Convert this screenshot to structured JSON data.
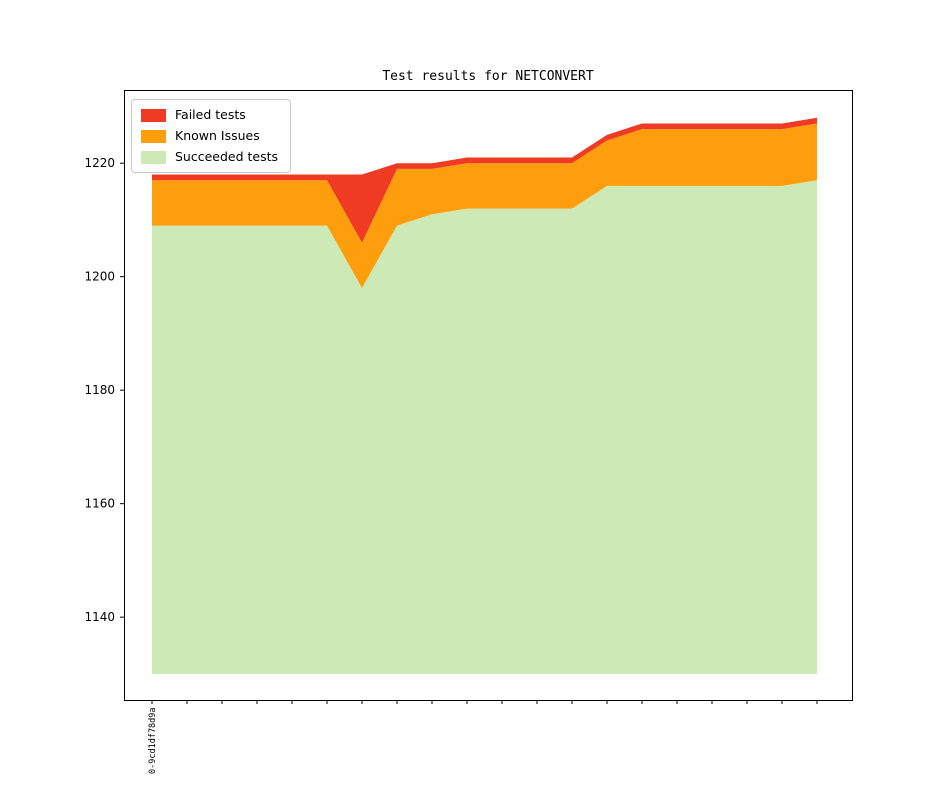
{
  "figure": {
    "title": "Test results for NETCONVERT"
  },
  "chart_data": {
    "type": "area",
    "stacked": true,
    "title": "Test results for NETCONVERT",
    "xlabel": "",
    "ylabel": "",
    "legend_position": "upper left",
    "grid": false,
    "ylim": [
      1125.4,
      1232.9
    ],
    "baseline": 1130,
    "yticks": [
      1140,
      1160,
      1180,
      1200,
      1220
    ],
    "x_tick_labels": [
      "0-9cd1df78d9a",
      "",
      "",
      "",
      "",
      "",
      "",
      "",
      "",
      "",
      "",
      "",
      "",
      "",
      "",
      "",
      "",
      "",
      "",
      ""
    ],
    "series": [
      {
        "name": "Failed tests",
        "color": "#f03b24",
        "values": [
          1,
          1,
          1,
          1,
          1,
          1,
          12,
          1,
          1,
          1,
          1,
          1,
          1,
          1,
          1,
          1,
          1,
          1,
          1,
          1
        ]
      },
      {
        "name": "Known Issues",
        "color": "#ff9e0d",
        "values": [
          8,
          8,
          8,
          8,
          8,
          8,
          8,
          10,
          8,
          8,
          8,
          8,
          8,
          8,
          10,
          10,
          10,
          10,
          10,
          10
        ]
      },
      {
        "name": "Succeeded tests",
        "color": "#cdeab6",
        "values": [
          1209,
          1209,
          1209,
          1209,
          1209,
          1209,
          1198,
          1209,
          1211,
          1212,
          1212,
          1212,
          1212,
          1216,
          1216,
          1216,
          1216,
          1216,
          1216,
          1217
        ]
      }
    ]
  }
}
